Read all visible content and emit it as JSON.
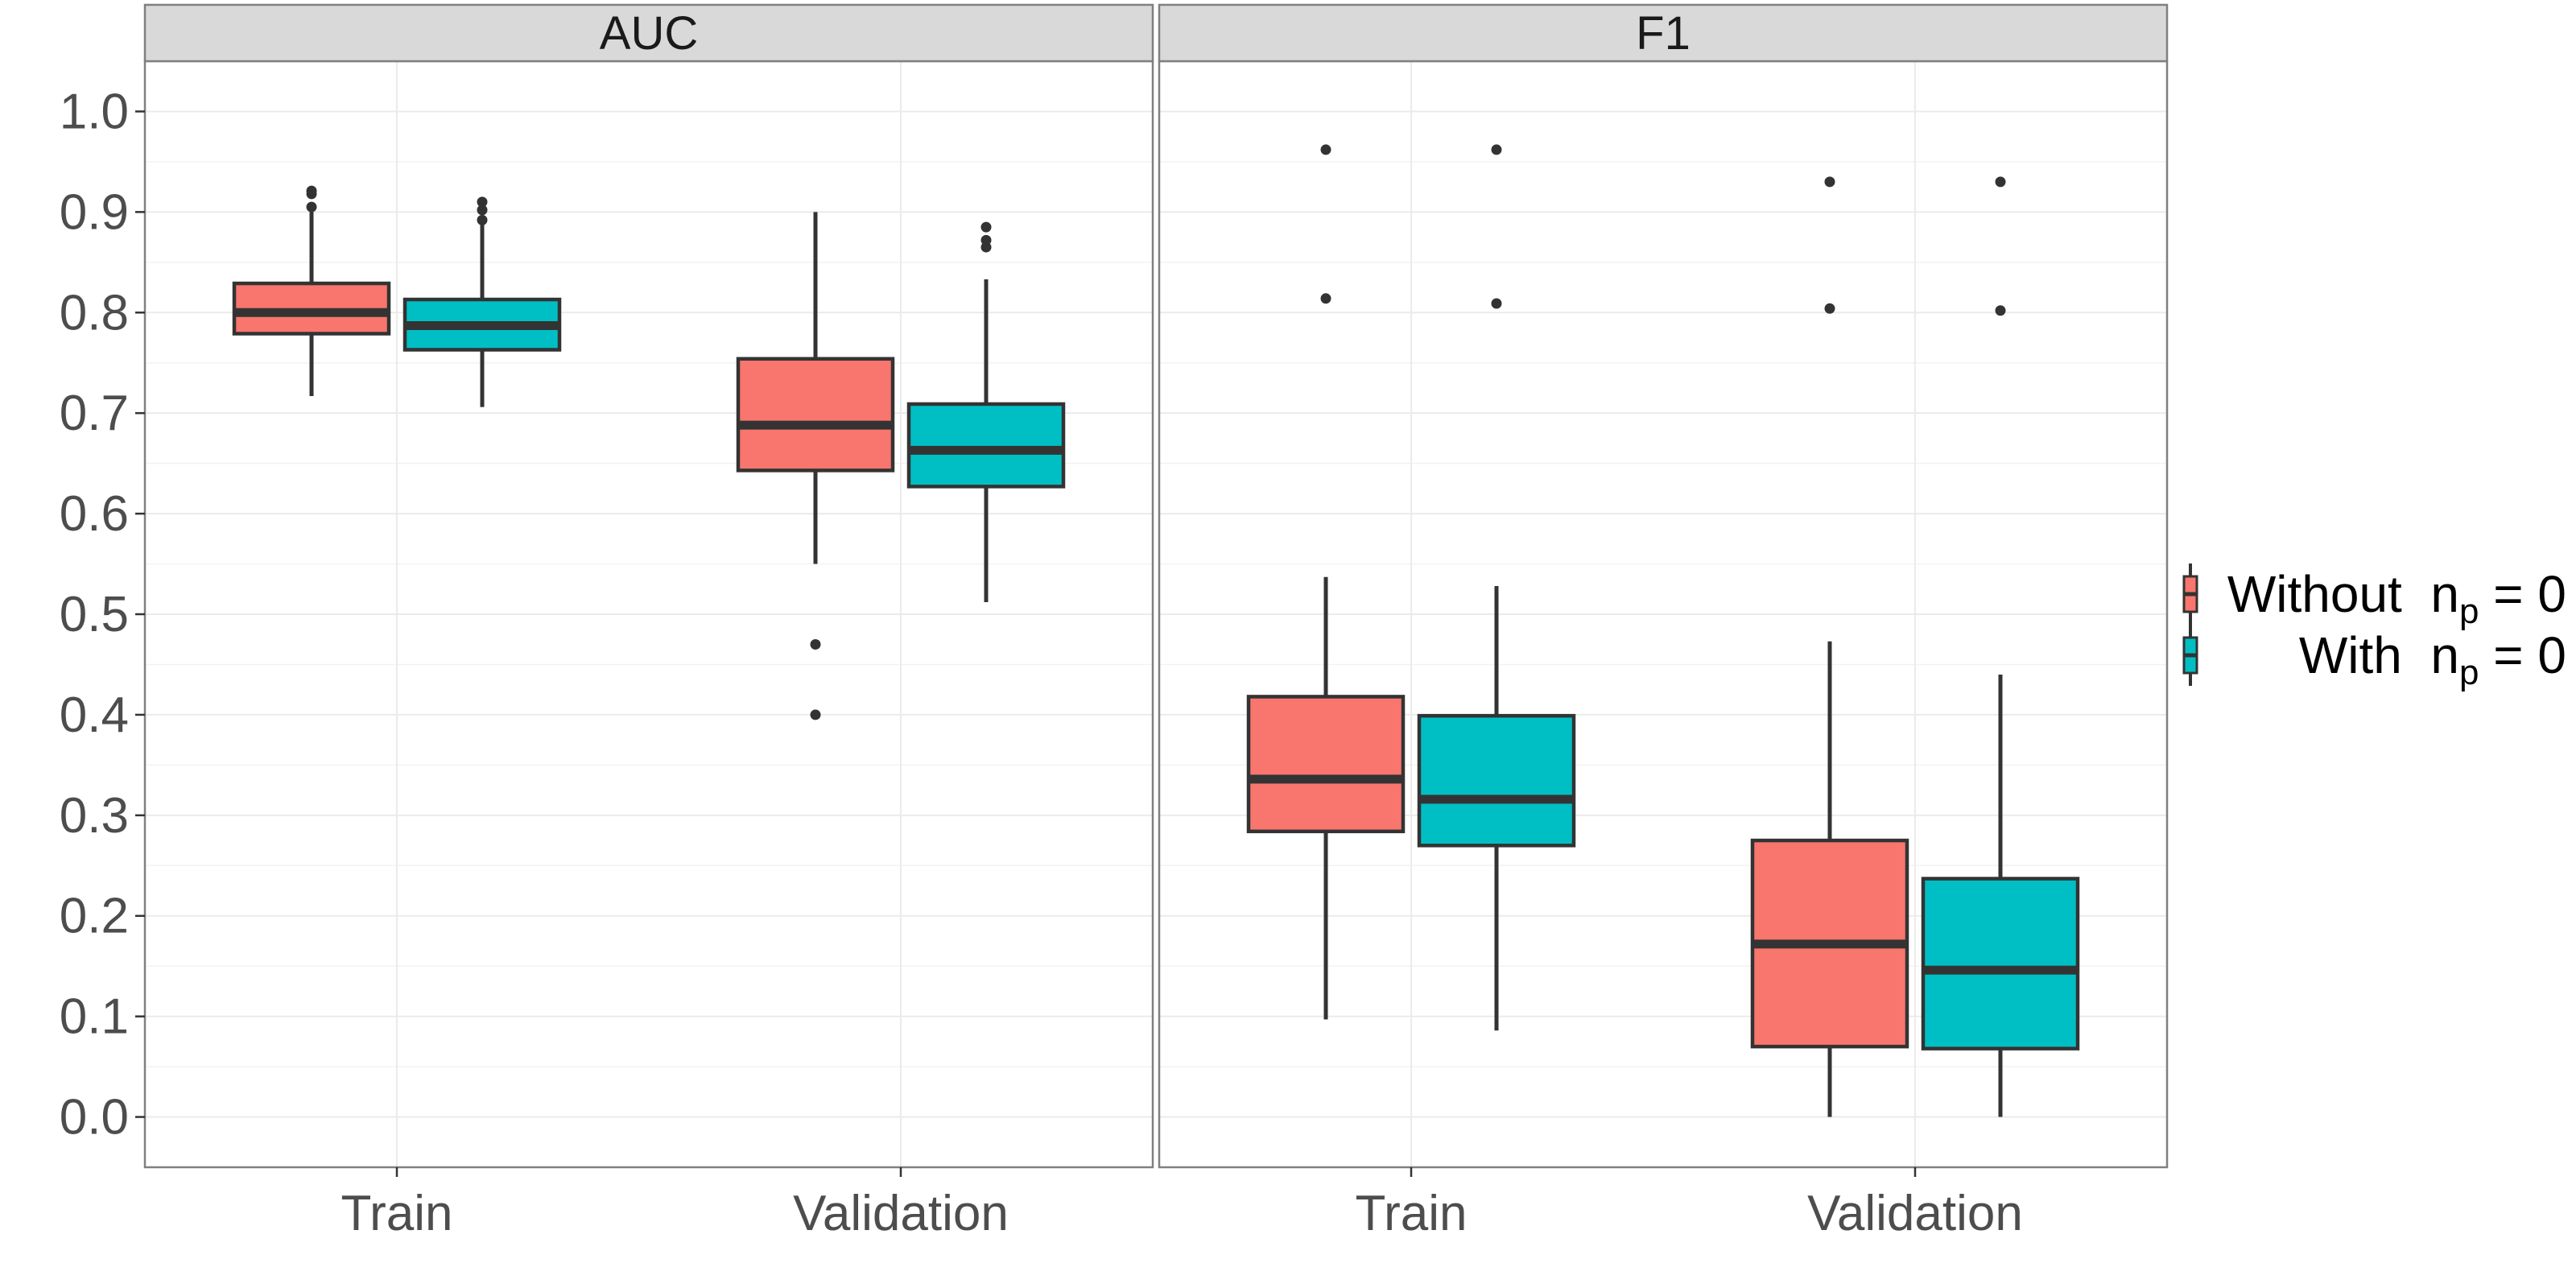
{
  "chart_data": {
    "type": "boxplot",
    "title": "",
    "xlabel": "",
    "ylabel": "",
    "ylim": [
      -0.05,
      1.05
    ],
    "y_ticks": [
      "0.0",
      "0.1",
      "0.2",
      "0.3",
      "0.4",
      "0.5",
      "0.6",
      "0.7",
      "0.8",
      "0.9",
      "1.0"
    ],
    "categories": [
      "Train",
      "Validation"
    ],
    "legend_position": "right",
    "legend": [
      {
        "name": "Without",
        "suffix_base": "n",
        "suffix_sub": "p",
        "suffix_rest": " = 0",
        "color": "#F8766D"
      },
      {
        "name": "With",
        "suffix_base": "n",
        "suffix_sub": "p",
        "suffix_rest": " = 0",
        "color": "#00BFC4"
      }
    ],
    "panels": [
      {
        "label": "AUC",
        "boxes": [
          {
            "category": "Train",
            "series": "Without",
            "whisker_low": 0.717,
            "q1": 0.779,
            "median": 0.8,
            "q3": 0.829,
            "whisker_high": 0.9,
            "outliers": [
              0.905,
              0.918,
              0.921
            ]
          },
          {
            "category": "Train",
            "series": "With",
            "whisker_low": 0.706,
            "q1": 0.763,
            "median": 0.787,
            "q3": 0.813,
            "whisker_high": 0.888,
            "outliers": [
              0.892,
              0.902,
              0.91
            ]
          },
          {
            "category": "Validation",
            "series": "Without",
            "whisker_low": 0.55,
            "q1": 0.643,
            "median": 0.688,
            "q3": 0.754,
            "whisker_high": 0.9,
            "outliers": [
              0.47,
              0.4
            ]
          },
          {
            "category": "Validation",
            "series": "With",
            "whisker_low": 0.512,
            "q1": 0.627,
            "median": 0.663,
            "q3": 0.709,
            "whisker_high": 0.833,
            "outliers": [
              0.865,
              0.872,
              0.885
            ]
          }
        ]
      },
      {
        "label": "F1",
        "boxes": [
          {
            "category": "Train",
            "series": "Without",
            "whisker_low": 0.097,
            "q1": 0.284,
            "median": 0.336,
            "q3": 0.418,
            "whisker_high": 0.537,
            "outliers": [
              0.962,
              0.814
            ]
          },
          {
            "category": "Train",
            "series": "With",
            "whisker_low": 0.086,
            "q1": 0.27,
            "median": 0.316,
            "q3": 0.399,
            "whisker_high": 0.528,
            "outliers": [
              0.962,
              0.809
            ]
          },
          {
            "category": "Validation",
            "series": "Without",
            "whisker_low": 0.0,
            "q1": 0.07,
            "median": 0.172,
            "q3": 0.275,
            "whisker_high": 0.473,
            "outliers": [
              0.93,
              0.804
            ]
          },
          {
            "category": "Validation",
            "series": "With",
            "whisker_low": 0.0,
            "q1": 0.068,
            "median": 0.146,
            "q3": 0.237,
            "whisker_high": 0.44,
            "outliers": [
              0.93,
              0.802
            ]
          }
        ]
      }
    ]
  }
}
